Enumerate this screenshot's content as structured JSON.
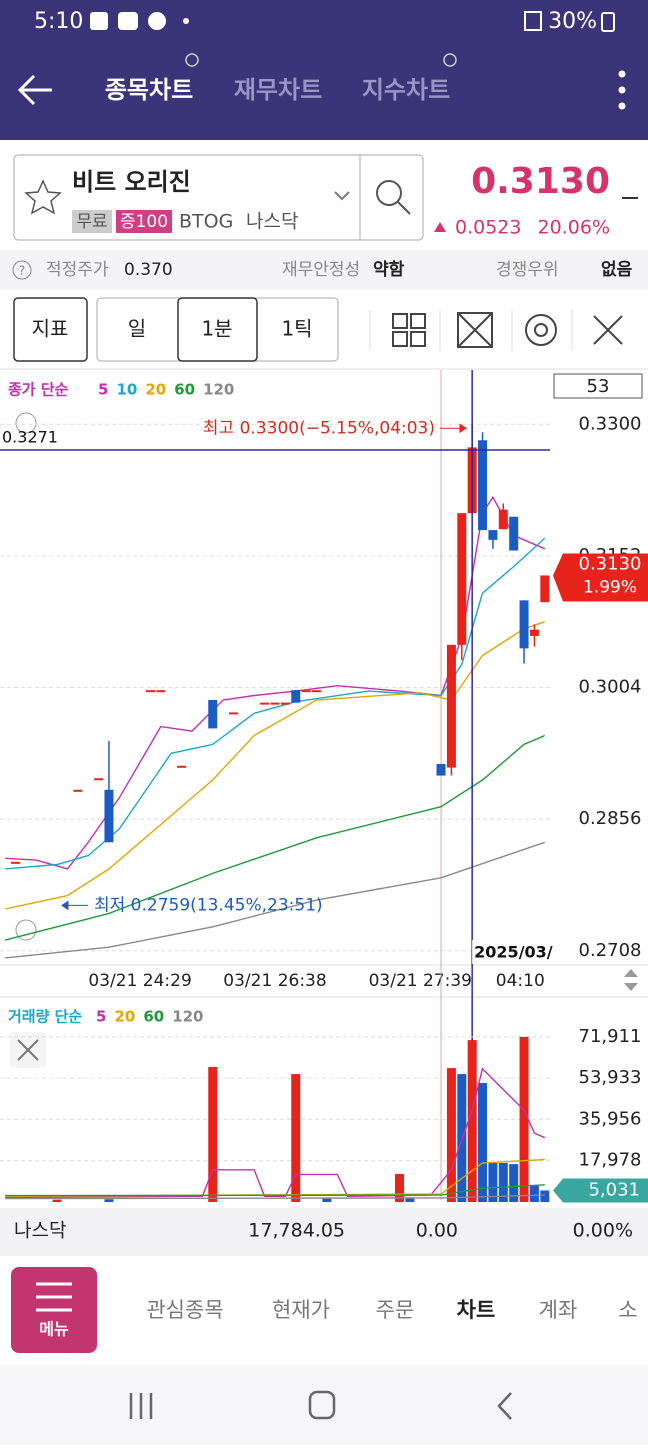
{
  "status_bar": {
    "time": "5:10",
    "battery": "30%"
  },
  "header": {
    "tabs": [
      "종목차트",
      "재무차트",
      "지수차트"
    ]
  },
  "stock": {
    "name": "비트 오리진",
    "tags": [
      "무료",
      "증100"
    ],
    "ticker": "BTOG",
    "market": "나스닥",
    "price": "0.3130",
    "change": "0.0523",
    "change_pct": "20.06%"
  },
  "info_bar": {
    "items": [
      {
        "label": "적정주가",
        "value": "0.370"
      },
      {
        "label": "재무안정성",
        "value": "약함"
      },
      {
        "label": "경쟁우위",
        "value": "없음"
      }
    ]
  },
  "toolbar": {
    "indicator": "지표",
    "periods": [
      "일",
      "1분",
      "1틱"
    ]
  },
  "chart_data": [
    {
      "type": "candlestick",
      "legend_title": "종가 단순",
      "bar_count": "53",
      "x": [
        1,
        7,
        9,
        10,
        14,
        15,
        17,
        20,
        22,
        25,
        26,
        27,
        28,
        29,
        30,
        42,
        43,
        44,
        45,
        46,
        47,
        48,
        49,
        50,
        51,
        52
      ],
      "open": [
        0.2808,
        0.2889,
        0.2902,
        0.2889,
        0.3001,
        0.3001,
        0.2916,
        0.299,
        0.2976,
        0.2987,
        0.2987,
        0.2987,
        0.3001,
        0.3001,
        0.3001,
        0.2918,
        0.2914,
        0.3052,
        0.32,
        0.3282,
        0.3181,
        0.3182,
        0.3196,
        0.3102,
        0.3062,
        0.31
      ],
      "high": [
        0.2808,
        0.2889,
        0.2902,
        0.2944,
        0.3001,
        0.3001,
        0.2916,
        0.299,
        0.2976,
        0.2987,
        0.2987,
        0.2987,
        0.3001,
        0.3001,
        0.3001,
        0.2918,
        0.3052,
        0.32,
        0.33,
        0.3291,
        0.3181,
        0.3211,
        0.3196,
        0.3102,
        0.3075,
        0.313
      ],
      "low": [
        0.2808,
        0.2889,
        0.2902,
        0.283,
        0.3001,
        0.3001,
        0.2916,
        0.2958,
        0.2976,
        0.2987,
        0.2987,
        0.2987,
        0.2987,
        0.3001,
        0.3001,
        0.2905,
        0.2905,
        0.3035,
        0.32,
        0.3181,
        0.316,
        0.3182,
        0.3158,
        0.3031,
        0.305,
        0.31
      ],
      "close": [
        0.2808,
        0.2889,
        0.2902,
        0.283,
        0.3001,
        0.3001,
        0.2916,
        0.2958,
        0.2976,
        0.2987,
        0.2987,
        0.2987,
        0.2987,
        0.3001,
        0.3001,
        0.2905,
        0.3052,
        0.32,
        0.3274,
        0.3181,
        0.317,
        0.3204,
        0.3158,
        0.3048,
        0.3069,
        0.313
      ],
      "up_color": "#e8231c",
      "down_color": "#1d5bc4",
      "series": [
        {
          "name": "5",
          "color": "#c42fae",
          "x": [
            0,
            3,
            6,
            8,
            11,
            15,
            18,
            21,
            24,
            28,
            32,
            38,
            42,
            44,
            46,
            47,
            49,
            52
          ],
          "values": [
            0.2812,
            0.281,
            0.28,
            0.283,
            0.288,
            0.296,
            0.2955,
            0.299,
            0.2995,
            0.3,
            0.3006,
            0.3,
            0.2995,
            0.306,
            0.32,
            0.3218,
            0.3175,
            0.316
          ]
        },
        {
          "name": "10",
          "color": "#1aa8c8",
          "x": [
            0,
            5,
            8,
            11,
            16,
            20,
            24,
            28,
            35,
            42,
            44,
            46,
            49,
            52
          ],
          "values": [
            0.28,
            0.2805,
            0.2815,
            0.2845,
            0.293,
            0.294,
            0.2975,
            0.2988,
            0.3,
            0.2995,
            0.303,
            0.311,
            0.314,
            0.3172
          ]
        },
        {
          "name": "20",
          "color": "#e3a600",
          "x": [
            0,
            6,
            10,
            16,
            20,
            24,
            30,
            40,
            43,
            46,
            50,
            52
          ],
          "values": [
            0.2755,
            0.277,
            0.28,
            0.286,
            0.29,
            0.295,
            0.299,
            0.2998,
            0.299,
            0.304,
            0.307,
            0.3078
          ]
        },
        {
          "name": "60",
          "color": "#1e9a3a",
          "x": [
            0,
            10,
            20,
            30,
            42,
            46,
            50,
            52
          ],
          "values": [
            0.272,
            0.275,
            0.2795,
            0.2835,
            0.287,
            0.29,
            0.294,
            0.295
          ]
        },
        {
          "name": "120",
          "color": "#888888",
          "x": [
            0,
            10,
            20,
            30,
            42,
            52
          ],
          "values": [
            0.27,
            0.2712,
            0.2735,
            0.2765,
            0.279,
            0.283
          ]
        }
      ],
      "xlim": [
        -0.5,
        52.5
      ],
      "ylim": [
        0.2692,
        0.3361
      ],
      "yticks": [
        {
          "value": 0.33,
          "label": "0.3300"
        },
        {
          "value": 0.3152,
          "label": "0.3152"
        },
        {
          "value": 0.3004,
          "label": "0.3004"
        },
        {
          "value": 0.2856,
          "label": "0.2856"
        },
        {
          "value": 0.2708,
          "label": "0.2708"
        }
      ],
      "xticks": [
        {
          "value": 13,
          "label": "03/21 24:29"
        },
        {
          "value": 26,
          "label": "03/21 26:38"
        },
        {
          "value": 40,
          "label": "03/21 27:39"
        },
        {
          "value": 52,
          "label": "04:10"
        }
      ],
      "high_annotation": "최고 0.3300(−5.15%,04:03)",
      "high_value": 0.33,
      "low_annotation": "최저 0.2759(13.45%,23:51)",
      "low_value": 0.2759,
      "crosshair": {
        "x": 45,
        "y": 0.3271,
        "date_label": "2025/03/"
      },
      "day_divider": 42,
      "last_price_label": "0.3130",
      "last_change": "1.99%",
      "last_price": 0.313
    },
    {
      "type": "bar",
      "legend_title": "거래량 단순",
      "x": [
        5,
        10,
        20,
        28,
        31,
        38,
        39,
        43,
        44,
        45,
        46,
        47,
        48,
        49,
        50,
        51,
        52
      ],
      "values": [
        1000,
        1200,
        58800,
        55700,
        1500,
        12200,
        2000,
        58300,
        55700,
        70500,
        51800,
        17000,
        17000,
        16500,
        71900,
        7400,
        5031
      ],
      "colors": [
        "#e8231c",
        "#1d5bc4",
        "#e8231c",
        "#e8231c",
        "#1d5bc4",
        "#e8231c",
        "#1d5bc4",
        "#e8231c",
        "#1d5bc4",
        "#e8231c",
        "#1d5bc4",
        "#1d5bc4",
        "#1d5bc4",
        "#1d5bc4",
        "#e8231c",
        "#1d5bc4",
        "#1d5bc4"
      ],
      "series": [
        {
          "name": "5",
          "color": "#c42fae",
          "x": [
            0,
            19,
            20,
            24,
            25,
            27,
            28,
            32,
            33,
            41,
            43,
            45,
            46,
            48,
            50,
            51,
            52
          ],
          "values": [
            2000,
            2500,
            14000,
            14000,
            2500,
            2500,
            12000,
            12000,
            2500,
            3000,
            14000,
            40000,
            58000,
            49000,
            40000,
            30000,
            28000
          ]
        },
        {
          "name": "20",
          "color": "#e3a600",
          "x": [
            0,
            42,
            46,
            52
          ],
          "values": [
            2500,
            3500,
            17000,
            18500
          ]
        },
        {
          "name": "60",
          "color": "#1e9a3a",
          "x": [
            0,
            42,
            46,
            52
          ],
          "values": [
            2800,
            3000,
            6000,
            7500
          ]
        },
        {
          "name": "120",
          "color": "#888888",
          "x": [
            0,
            42,
            52
          ],
          "values": [
            1500,
            1800,
            3000
          ]
        }
      ],
      "xlim": [
        -0.5,
        52.5
      ],
      "ylim": [
        0,
        83600
      ],
      "yticks": [
        {
          "value": 71911,
          "label": "71,911"
        },
        {
          "value": 53933,
          "label": "53,933"
        },
        {
          "value": 35956,
          "label": "35,956"
        },
        {
          "value": 17978,
          "label": "17,978"
        }
      ],
      "last_label": "5,031"
    }
  ],
  "index_bar": {
    "name": "나스닥",
    "value": "17,784.05",
    "change": "0.00",
    "change_pct": "0.00%"
  },
  "bottom_nav": {
    "menu": "메뉴",
    "items": [
      "관심종목",
      "현재가",
      "주문",
      "차트",
      "계좌",
      "소"
    ]
  }
}
